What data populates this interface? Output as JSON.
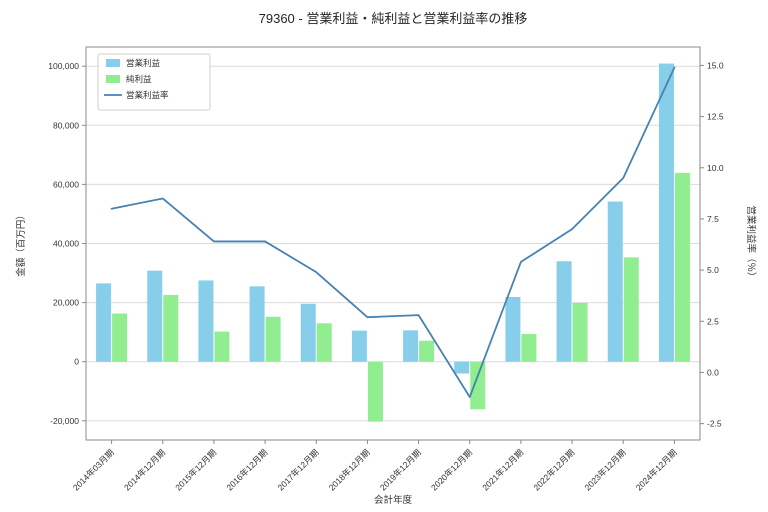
{
  "window": {
    "title": "79360 - 営業利益・純利益と営業利益率の推移"
  },
  "chart_data": {
    "type": "bar",
    "title": "79360 - 営業利益・純利益と営業利益率の推移",
    "xlabel": "会計年度",
    "ylabel_left": "金額（百万円）",
    "ylabel_right": "営業利益率（％）",
    "categories": [
      "2014年03月期",
      "2014年12月期",
      "2015年12月期",
      "2016年12月期",
      "2017年12月期",
      "2018年12月期",
      "2019年12月期",
      "2020年12月期",
      "2021年12月期",
      "2022年12月期",
      "2023年12月期",
      "2024年12月期"
    ],
    "series": [
      {
        "name": "営業利益",
        "type": "bar",
        "axis": "left",
        "color": "#87ceeb",
        "values": [
          26500,
          30800,
          27500,
          25500,
          19600,
          10500,
          10600,
          -4000,
          21900,
          34000,
          54200,
          100900
        ]
      },
      {
        "name": "純利益",
        "type": "bar",
        "axis": "left",
        "color": "#90ee90",
        "values": [
          16300,
          22600,
          10200,
          15200,
          13000,
          -20300,
          7100,
          -16100,
          9400,
          19900,
          35300,
          63900
        ]
      },
      {
        "name": "営業利益率",
        "type": "line",
        "axis": "right",
        "color": "#4682b4",
        "values": [
          8.0,
          8.5,
          6.4,
          6.4,
          4.9,
          2.7,
          2.8,
          -1.2,
          5.4,
          7.0,
          9.5,
          14.9
        ]
      }
    ],
    "ylim_left": [
      -26500,
      106500
    ],
    "ylim_right": [
      -3.3,
      15.9
    ],
    "yticks_left": [
      -20000,
      0,
      20000,
      40000,
      60000,
      80000,
      100000
    ],
    "yticks_right": [
      -2.5,
      0.0,
      2.5,
      5.0,
      7.5,
      10.0,
      12.5,
      15.0
    ],
    "grid": true,
    "legend_position": "upper left",
    "colors": {
      "grid": "#dcdcdc",
      "axis_box": "#8a8a8a",
      "tick_text": "#333333",
      "background": "#ffffff"
    }
  }
}
